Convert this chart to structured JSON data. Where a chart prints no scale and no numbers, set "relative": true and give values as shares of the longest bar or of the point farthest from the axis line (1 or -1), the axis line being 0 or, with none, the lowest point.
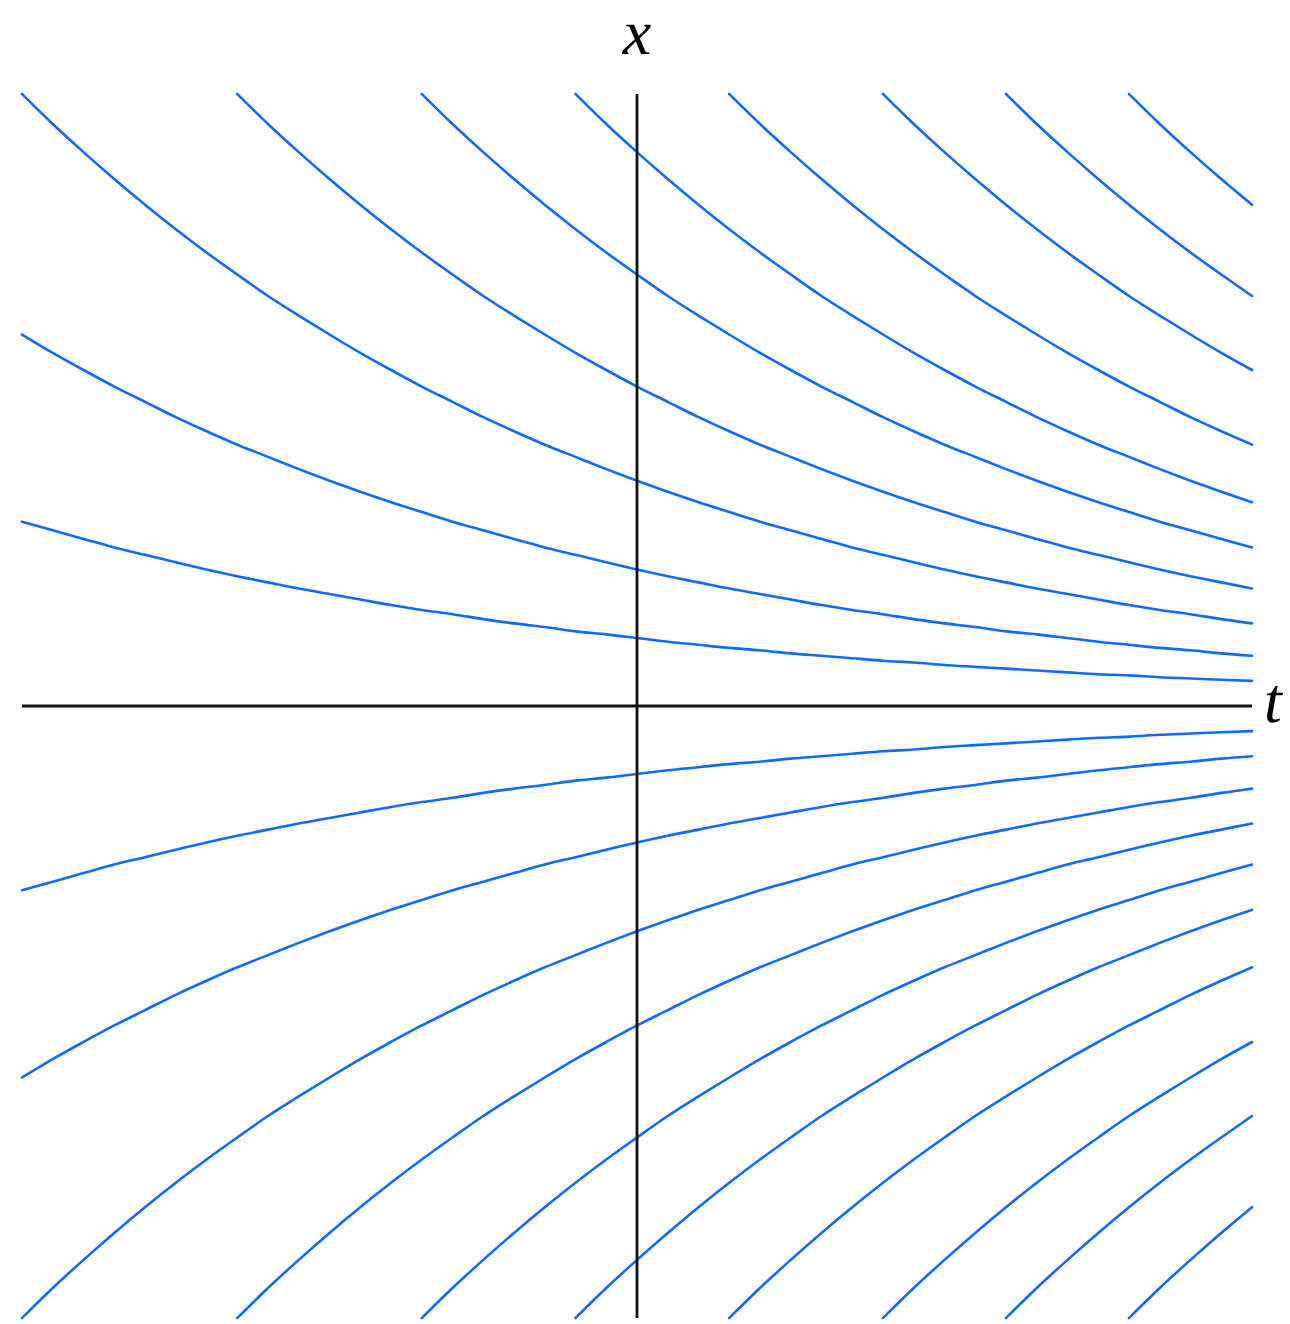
{
  "chart_data": {
    "type": "line",
    "relative": true,
    "xlabel": "t",
    "ylabel": "x",
    "categories": [
      null,
      null,
      null,
      null,
      null,
      null,
      null,
      null,
      null,
      null,
      null,
      null,
      null,
      null,
      null,
      null,
      null,
      null,
      null,
      null,
      null,
      null,
      null,
      null,
      null,
      null,
      null,
      null,
      null,
      null,
      null,
      null,
      null,
      null,
      null,
      null,
      null,
      null,
      null,
      null,
      null
    ],
    "series": [
      {
        "color": "#0f6bff",
        "values": [
          0.301,
          0.287,
          0.273,
          0.259,
          0.247,
          0.235,
          0.223,
          0.212,
          0.202,
          0.192,
          0.183,
          0.174,
          0.165,
          0.157,
          0.15,
          0.142,
          0.135,
          0.129,
          0.122,
          0.117,
          0.111,
          0.105,
          0.1,
          0.095,
          0.091,
          0.086,
          0.082,
          0.078,
          0.074,
          0.071,
          0.067,
          0.064,
          0.061,
          0.058,
          0.055,
          0.052,
          0.05,
          0.047,
          0.045,
          0.043,
          0.041
        ]
      },
      {
        "color": "#0f6bff",
        "values": [
          0.607,
          0.577,
          0.549,
          0.522,
          0.497,
          0.472,
          0.449,
          0.427,
          0.407,
          0.387,
          0.368,
          0.35,
          0.333,
          0.317,
          0.301,
          0.287,
          0.273,
          0.259,
          0.247,
          0.235,
          0.223,
          0.212,
          0.202,
          0.192,
          0.183,
          0.174,
          0.165,
          0.157,
          0.15,
          0.142,
          0.135,
          0.129,
          0.122,
          0.117,
          0.111,
          0.105,
          0.1,
          0.095,
          0.091,
          0.086,
          0.082
        ]
      },
      {
        "color": "#0f6bff",
        "values": [
          1,
          0.951,
          0.905,
          0.861,
          0.819,
          0.779,
          0.741,
          0.705,
          0.67,
          0.638,
          0.607,
          0.577,
          0.549,
          0.522,
          0.497,
          0.472,
          0.449,
          0.427,
          0.407,
          0.387,
          0.368,
          0.35,
          0.333,
          0.317,
          0.301,
          0.287,
          0.273,
          0.259,
          0.247,
          0.235,
          0.223,
          0.212,
          0.202,
          0.192,
          0.183,
          0.174,
          0.165,
          0.157,
          0.15,
          0.142,
          0.135
        ]
      },
      {
        "color": "#0f6bff",
        "values": [
          null,
          null,
          null,
          null,
          null,
          null,
          null,
          1,
          0.951,
          0.905,
          0.861,
          0.819,
          0.779,
          0.741,
          0.705,
          0.67,
          0.638,
          0.607,
          0.577,
          0.549,
          0.522,
          0.497,
          0.472,
          0.449,
          0.427,
          0.407,
          0.387,
          0.368,
          0.35,
          0.333,
          0.317,
          0.301,
          0.287,
          0.273,
          0.259,
          0.247,
          0.235,
          0.223,
          0.212,
          0.202,
          0.192
        ]
      },
      {
        "color": "#0f6bff",
        "values": [
          null,
          null,
          null,
          null,
          null,
          null,
          null,
          null,
          null,
          null,
          null,
          null,
          null,
          1,
          0.951,
          0.905,
          0.861,
          0.819,
          0.779,
          0.741,
          0.705,
          0.67,
          0.638,
          0.607,
          0.577,
          0.549,
          0.522,
          0.497,
          0.472,
          0.449,
          0.427,
          0.407,
          0.387,
          0.368,
          0.35,
          0.333,
          0.317,
          0.301,
          0.287,
          0.273,
          0.259
        ]
      },
      {
        "color": "#0f6bff",
        "values": [
          null,
          null,
          null,
          null,
          null,
          null,
          null,
          null,
          null,
          null,
          null,
          null,
          null,
          null,
          null,
          null,
          null,
          null,
          1,
          0.951,
          0.905,
          0.861,
          0.819,
          0.779,
          0.741,
          0.705,
          0.67,
          0.638,
          0.607,
          0.577,
          0.549,
          0.522,
          0.497,
          0.472,
          0.449,
          0.427,
          0.407,
          0.387,
          0.368,
          0.35,
          0.333
        ]
      },
      {
        "color": "#0f6bff",
        "values": [
          null,
          null,
          null,
          null,
          null,
          null,
          null,
          null,
          null,
          null,
          null,
          null,
          null,
          null,
          null,
          null,
          null,
          null,
          null,
          null,
          null,
          null,
          null,
          1,
          0.951,
          0.905,
          0.861,
          0.819,
          0.779,
          0.741,
          0.705,
          0.67,
          0.638,
          0.607,
          0.577,
          0.549,
          0.522,
          0.497,
          0.472,
          0.449,
          0.427
        ]
      },
      {
        "color": "#0f6bff",
        "values": [
          null,
          null,
          null,
          null,
          null,
          null,
          null,
          null,
          null,
          null,
          null,
          null,
          null,
          null,
          null,
          null,
          null,
          null,
          null,
          null,
          null,
          null,
          null,
          null,
          null,
          null,
          null,
          null,
          1,
          0.951,
          0.905,
          0.861,
          0.819,
          0.779,
          0.741,
          0.705,
          0.67,
          0.638,
          0.607,
          0.577,
          0.549
        ]
      },
      {
        "color": "#0f6bff",
        "values": [
          null,
          null,
          null,
          null,
          null,
          null,
          null,
          null,
          null,
          null,
          null,
          null,
          null,
          null,
          null,
          null,
          null,
          null,
          null,
          null,
          null,
          null,
          null,
          null,
          null,
          null,
          null,
          null,
          null,
          null,
          null,
          null,
          1,
          0.951,
          0.905,
          0.861,
          0.819,
          0.779,
          0.741,
          0.705,
          0.67
        ]
      },
      {
        "color": "#0f6bff",
        "values": [
          null,
          null,
          null,
          null,
          null,
          null,
          null,
          null,
          null,
          null,
          null,
          null,
          null,
          null,
          null,
          null,
          null,
          null,
          null,
          null,
          null,
          null,
          null,
          null,
          null,
          null,
          null,
          null,
          null,
          null,
          null,
          null,
          null,
          null,
          null,
          null,
          1,
          0.951,
          0.905,
          0.861,
          0.819
        ]
      },
      {
        "color": "#0f6bff",
        "values": [
          -0.301,
          -0.287,
          -0.273,
          -0.259,
          -0.247,
          -0.235,
          -0.223,
          -0.212,
          -0.202,
          -0.192,
          -0.183,
          -0.174,
          -0.165,
          -0.157,
          -0.15,
          -0.142,
          -0.135,
          -0.129,
          -0.122,
          -0.117,
          -0.111,
          -0.105,
          -0.1,
          -0.095,
          -0.091,
          -0.086,
          -0.082,
          -0.078,
          -0.074,
          -0.071,
          -0.067,
          -0.064,
          -0.061,
          -0.058,
          -0.055,
          -0.052,
          -0.05,
          -0.047,
          -0.045,
          -0.043,
          -0.041
        ]
      },
      {
        "color": "#0f6bff",
        "values": [
          -0.607,
          -0.577,
          -0.549,
          -0.522,
          -0.497,
          -0.472,
          -0.449,
          -0.427,
          -0.407,
          -0.387,
          -0.368,
          -0.35,
          -0.333,
          -0.317,
          -0.301,
          -0.287,
          -0.273,
          -0.259,
          -0.247,
          -0.235,
          -0.223,
          -0.212,
          -0.202,
          -0.192,
          -0.183,
          -0.174,
          -0.165,
          -0.157,
          -0.15,
          -0.142,
          -0.135,
          -0.129,
          -0.122,
          -0.117,
          -0.111,
          -0.105,
          -0.1,
          -0.095,
          -0.091,
          -0.086,
          -0.082
        ]
      },
      {
        "color": "#0f6bff",
        "values": [
          -1,
          -0.951,
          -0.905,
          -0.861,
          -0.819,
          -0.779,
          -0.741,
          -0.705,
          -0.67,
          -0.638,
          -0.607,
          -0.577,
          -0.549,
          -0.522,
          -0.497,
          -0.472,
          -0.449,
          -0.427,
          -0.407,
          -0.387,
          -0.368,
          -0.35,
          -0.333,
          -0.317,
          -0.301,
          -0.287,
          -0.273,
          -0.259,
          -0.247,
          -0.235,
          -0.223,
          -0.212,
          -0.202,
          -0.192,
          -0.183,
          -0.174,
          -0.165,
          -0.157,
          -0.15,
          -0.142,
          -0.135
        ]
      },
      {
        "color": "#0f6bff",
        "values": [
          null,
          null,
          null,
          null,
          null,
          null,
          null,
          -1,
          -0.951,
          -0.905,
          -0.861,
          -0.819,
          -0.779,
          -0.741,
          -0.705,
          -0.67,
          -0.638,
          -0.607,
          -0.577,
          -0.549,
          -0.522,
          -0.497,
          -0.472,
          -0.449,
          -0.427,
          -0.407,
          -0.387,
          -0.368,
          -0.35,
          -0.333,
          -0.317,
          -0.301,
          -0.287,
          -0.273,
          -0.259,
          -0.247,
          -0.235,
          -0.223,
          -0.212,
          -0.202,
          -0.192
        ]
      },
      {
        "color": "#0f6bff",
        "values": [
          null,
          null,
          null,
          null,
          null,
          null,
          null,
          null,
          null,
          null,
          null,
          null,
          null,
          -1,
          -0.951,
          -0.905,
          -0.861,
          -0.819,
          -0.779,
          -0.741,
          -0.705,
          -0.67,
          -0.638,
          -0.607,
          -0.577,
          -0.549,
          -0.522,
          -0.497,
          -0.472,
          -0.449,
          -0.427,
          -0.407,
          -0.387,
          -0.368,
          -0.35,
          -0.333,
          -0.317,
          -0.301,
          -0.287,
          -0.273,
          -0.259
        ]
      },
      {
        "color": "#0f6bff",
        "values": [
          null,
          null,
          null,
          null,
          null,
          null,
          null,
          null,
          null,
          null,
          null,
          null,
          null,
          null,
          null,
          null,
          null,
          null,
          -1,
          -0.951,
          -0.905,
          -0.861,
          -0.819,
          -0.779,
          -0.741,
          -0.705,
          -0.67,
          -0.638,
          -0.607,
          -0.577,
          -0.549,
          -0.522,
          -0.497,
          -0.472,
          -0.449,
          -0.427,
          -0.407,
          -0.387,
          -0.368,
          -0.35,
          -0.333
        ]
      },
      {
        "color": "#0f6bff",
        "values": [
          null,
          null,
          null,
          null,
          null,
          null,
          null,
          null,
          null,
          null,
          null,
          null,
          null,
          null,
          null,
          null,
          null,
          null,
          null,
          null,
          null,
          null,
          null,
          -1,
          -0.951,
          -0.905,
          -0.861,
          -0.819,
          -0.779,
          -0.741,
          -0.705,
          -0.67,
          -0.638,
          -0.607,
          -0.577,
          -0.549,
          -0.522,
          -0.497,
          -0.472,
          -0.449,
          -0.427
        ]
      },
      {
        "color": "#0f6bff",
        "values": [
          null,
          null,
          null,
          null,
          null,
          null,
          null,
          null,
          null,
          null,
          null,
          null,
          null,
          null,
          null,
          null,
          null,
          null,
          null,
          null,
          null,
          null,
          null,
          null,
          null,
          null,
          null,
          null,
          -1,
          -0.951,
          -0.905,
          -0.861,
          -0.819,
          -0.779,
          -0.741,
          -0.705,
          -0.67,
          -0.638,
          -0.607,
          -0.577,
          -0.549
        ]
      },
      {
        "color": "#0f6bff",
        "values": [
          null,
          null,
          null,
          null,
          null,
          null,
          null,
          null,
          null,
          null,
          null,
          null,
          null,
          null,
          null,
          null,
          null,
          null,
          null,
          null,
          null,
          null,
          null,
          null,
          null,
          null,
          null,
          null,
          null,
          null,
          null,
          null,
          -1,
          -0.951,
          -0.905,
          -0.861,
          -0.819,
          -0.779,
          -0.741,
          -0.705,
          -0.67
        ]
      },
      {
        "color": "#0f6bff",
        "values": [
          null,
          null,
          null,
          null,
          null,
          null,
          null,
          null,
          null,
          null,
          null,
          null,
          null,
          null,
          null,
          null,
          null,
          null,
          null,
          null,
          null,
          null,
          null,
          null,
          null,
          null,
          null,
          null,
          null,
          null,
          null,
          null,
          null,
          null,
          null,
          null,
          -1,
          -0.951,
          -0.905,
          -0.861,
          -0.819
        ]
      }
    ]
  }
}
